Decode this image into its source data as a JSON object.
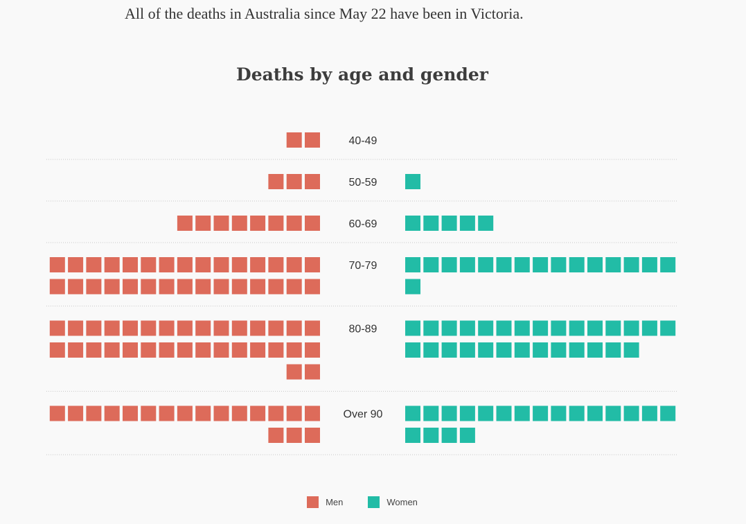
{
  "intro_text": "All of the deaths in Australia since May 22 have been in Victoria.",
  "chart_data": {
    "type": "waffle",
    "title": "Deaths by age and gender",
    "categories": [
      "40-49",
      "50-59",
      "60-69",
      "70-79",
      "80-89",
      "Over 90"
    ],
    "series": [
      {
        "name": "Men",
        "color": "#dd6b5a",
        "values": [
          2,
          3,
          8,
          30,
          32,
          18
        ]
      },
      {
        "name": "Women",
        "color": "#22bca6",
        "values": [
          0,
          1,
          5,
          16,
          28,
          19
        ]
      }
    ],
    "units_per_row": 15,
    "grid": "dotted row separators",
    "legend_position": "bottom-center"
  },
  "legend": {
    "items": [
      {
        "label": "Men",
        "color": "#dd6b5a"
      },
      {
        "label": "Women",
        "color": "#22bca6"
      }
    ]
  }
}
